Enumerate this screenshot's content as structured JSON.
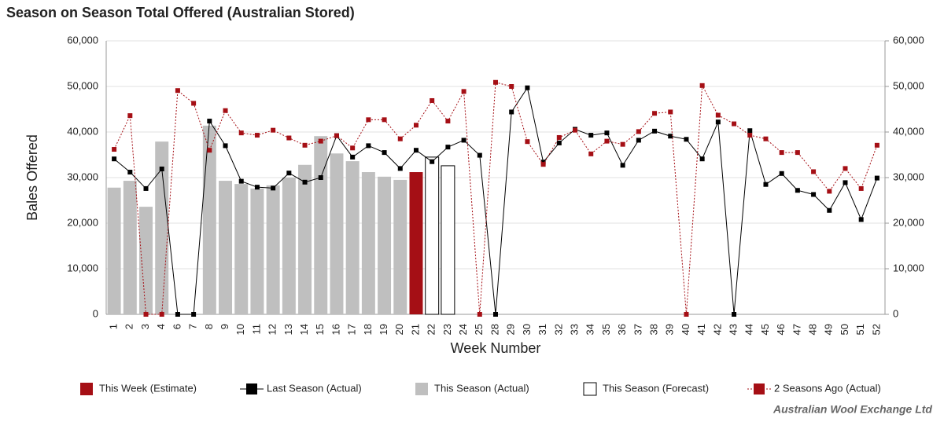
{
  "chart_data": {
    "type": "combo",
    "title": "Season on Season Total Offered (Australian Stored)",
    "x_label": "Week Number",
    "y_label": "Bales Offered",
    "source": "Australian Wool Exchange Ltd",
    "categories": [
      "1",
      "2",
      "3",
      "4",
      "6",
      "7",
      "8",
      "9",
      "10",
      "11",
      "12",
      "13",
      "14",
      "15",
      "16",
      "17",
      "18",
      "19",
      "20",
      "21",
      "22",
      "23",
      "24",
      "25",
      "28",
      "29",
      "30",
      "31",
      "32",
      "33",
      "34",
      "35",
      "36",
      "37",
      "38",
      "39",
      "40",
      "41",
      "42",
      "43",
      "44",
      "45",
      "46",
      "47",
      "48",
      "49",
      "50",
      "51",
      "52"
    ],
    "series": [
      {
        "name": "This Week (Estimate)",
        "type": "bar",
        "color": "#a50f15",
        "values": [
          null,
          null,
          null,
          null,
          null,
          null,
          null,
          null,
          null,
          null,
          null,
          null,
          null,
          null,
          null,
          null,
          null,
          null,
          null,
          31200,
          null,
          null,
          null,
          null,
          null,
          null,
          null,
          null,
          null,
          null,
          null,
          null,
          null,
          null,
          null,
          null,
          null,
          null,
          null,
          null,
          null,
          null,
          null,
          null,
          null,
          null,
          null,
          null,
          null
        ]
      },
      {
        "name": "Last Season (Actual)",
        "type": "line",
        "color": "#000000",
        "values": [
          34100,
          31200,
          27600,
          31900,
          0,
          0,
          42400,
          37000,
          29200,
          27900,
          27700,
          31000,
          29000,
          30000,
          39200,
          34500,
          37000,
          35500,
          32000,
          36000,
          33500,
          36700,
          38200,
          34900,
          0,
          44400,
          49700,
          33400,
          37600,
          40600,
          39300,
          39800,
          32700,
          38200,
          40200,
          39100,
          38400,
          34100,
          42200,
          0,
          40300,
          28500,
          30900,
          27200,
          26300,
          22800,
          28900,
          20800,
          29900
        ]
      },
      {
        "name": "This Season (Actual)",
        "type": "bar",
        "color": "#bfbfbf",
        "values": [
          27800,
          29300,
          23600,
          37900,
          null,
          null,
          41400,
          29300,
          28600,
          27600,
          28300,
          30000,
          32800,
          39100,
          35300,
          33600,
          31200,
          30200,
          29500,
          null,
          null,
          null,
          null,
          null,
          null,
          null,
          null,
          null,
          null,
          null,
          null,
          null,
          null,
          null,
          null,
          null,
          null,
          null,
          null,
          null,
          null,
          null,
          null,
          null,
          null,
          null,
          null,
          null,
          null
        ]
      },
      {
        "name": "This Season (Forecast)",
        "type": "bar",
        "color": "#ffffff",
        "values": [
          null,
          null,
          null,
          null,
          null,
          null,
          null,
          null,
          null,
          null,
          null,
          null,
          null,
          null,
          null,
          null,
          null,
          null,
          null,
          null,
          34500,
          32600,
          null,
          null,
          null,
          null,
          null,
          null,
          null,
          null,
          null,
          null,
          null,
          null,
          null,
          null,
          null,
          null,
          null,
          null,
          null,
          null,
          null,
          null,
          null,
          null,
          null,
          null,
          null
        ]
      },
      {
        "name": "2 Seasons Ago (Actual)",
        "type": "line",
        "dotted": true,
        "color": "#a50f15",
        "values": [
          36200,
          43600,
          0,
          0,
          49100,
          46300,
          36000,
          44700,
          39800,
          39300,
          40400,
          38700,
          37100,
          38000,
          39200,
          36500,
          42700,
          42700,
          38500,
          41500,
          46900,
          42400,
          48900,
          0,
          50900,
          50000,
          37900,
          32900,
          38800,
          40400,
          35200,
          38000,
          37300,
          40100,
          44100,
          44400,
          0,
          50200,
          43700,
          41800,
          39300,
          38500,
          35500,
          35500,
          31300,
          27000,
          32000,
          27600,
          37100
        ]
      }
    ],
    "ylim": [
      0,
      60000
    ],
    "yticks": [
      {
        "value": 0,
        "label": "0"
      },
      {
        "value": 10000,
        "label": "10,000"
      },
      {
        "value": 20000,
        "label": "20,000"
      },
      {
        "value": 30000,
        "label": "30,000"
      },
      {
        "value": 40000,
        "label": "40,000"
      },
      {
        "value": 50000,
        "label": "50,000"
      },
      {
        "value": 60000,
        "label": "60,000"
      }
    ],
    "y2lim": [
      0,
      60000
    ],
    "y2ticks": [
      {
        "value": 0,
        "label": "0"
      },
      {
        "value": 10000,
        "label": "10,000"
      },
      {
        "value": 20000,
        "label": "20,000"
      },
      {
        "value": 30000,
        "label": "30,000"
      },
      {
        "value": 40000,
        "label": "40,000"
      },
      {
        "value": 50000,
        "label": "50,000"
      },
      {
        "value": 60000,
        "label": "60,000"
      }
    ],
    "grid": true,
    "legend": "bottom"
  }
}
